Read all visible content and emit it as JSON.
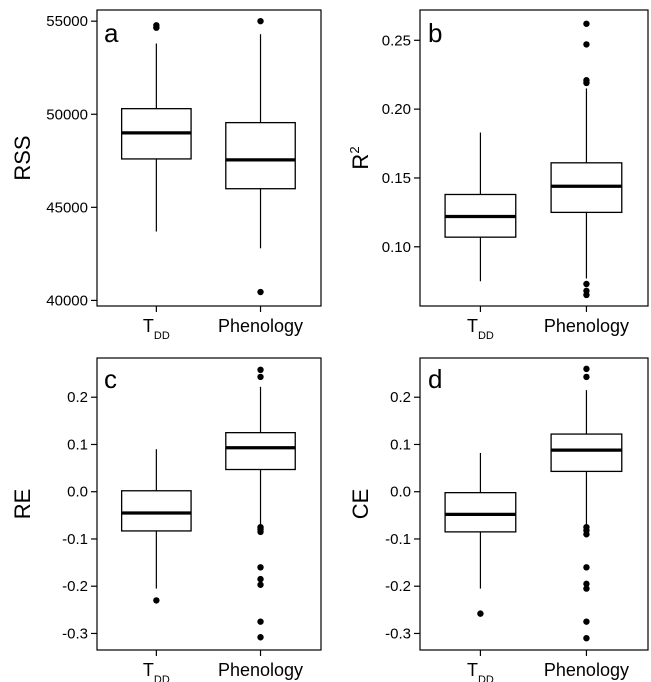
{
  "chart_data": [
    {
      "type": "box",
      "panel_label": "a",
      "ylabel": "RSS",
      "ylabel_sup": "",
      "categories": [
        {
          "main": "T",
          "sub": "DD"
        },
        {
          "main": "Phenology",
          "sub": ""
        }
      ],
      "ylim": [
        39700,
        55600
      ],
      "yticks": [
        40000,
        45000,
        50000,
        55000
      ],
      "yticklabels": [
        "40000",
        "45000",
        "50000",
        "55000"
      ],
      "boxes": [
        {
          "whisker_low": 43700,
          "q1": 47600,
          "median": 49000,
          "q3": 50300,
          "whisker_high": 53800,
          "outliers": [
            54650,
            54780
          ]
        },
        {
          "whisker_low": 42800,
          "q1": 46000,
          "median": 47550,
          "q3": 49550,
          "whisker_high": 54300,
          "outliers": [
            55000,
            40450
          ]
        }
      ]
    },
    {
      "type": "box",
      "panel_label": "b",
      "ylabel": "R",
      "ylabel_sup": "2",
      "categories": [
        {
          "main": "T",
          "sub": "DD"
        },
        {
          "main": "Phenology",
          "sub": ""
        }
      ],
      "ylim": [
        0.057,
        0.272
      ],
      "yticks": [
        0.1,
        0.15,
        0.2,
        0.25
      ],
      "yticklabels": [
        "0.10",
        "0.15",
        "0.20",
        "0.25"
      ],
      "boxes": [
        {
          "whisker_low": 0.075,
          "q1": 0.107,
          "median": 0.122,
          "q3": 0.138,
          "whisker_high": 0.183,
          "outliers": []
        },
        {
          "whisker_low": 0.077,
          "q1": 0.125,
          "median": 0.144,
          "q3": 0.161,
          "whisker_high": 0.215,
          "outliers": [
            0.262,
            0.247,
            0.221,
            0.219,
            0.073,
            0.068,
            0.065
          ]
        }
      ]
    },
    {
      "type": "box",
      "panel_label": "c",
      "ylabel": "RE",
      "ylabel_sup": "",
      "categories": [
        {
          "main": "T",
          "sub": "DD"
        },
        {
          "main": "Phenology",
          "sub": ""
        }
      ],
      "ylim": [
        -0.335,
        0.283
      ],
      "yticks": [
        -0.3,
        -0.2,
        -0.1,
        0.0,
        0.1,
        0.2
      ],
      "yticklabels": [
        "-0.3",
        "-0.2",
        "-0.1",
        "0.0",
        "0.1",
        "0.2"
      ],
      "boxes": [
        {
          "whisker_low": -0.205,
          "q1": -0.083,
          "median": -0.045,
          "q3": 0.002,
          "whisker_high": 0.09,
          "outliers": [
            -0.23
          ]
        },
        {
          "whisker_low": -0.07,
          "q1": 0.047,
          "median": 0.093,
          "q3": 0.125,
          "whisker_high": 0.222,
          "outliers": [
            0.258,
            0.243,
            -0.075,
            -0.08,
            -0.085,
            -0.16,
            -0.185,
            -0.197,
            -0.275,
            -0.308
          ]
        }
      ]
    },
    {
      "type": "box",
      "panel_label": "d",
      "ylabel": "CE",
      "ylabel_sup": "",
      "categories": [
        {
          "main": "T",
          "sub": "DD"
        },
        {
          "main": "Phenology",
          "sub": ""
        }
      ],
      "ylim": [
        -0.335,
        0.283
      ],
      "yticks": [
        -0.3,
        -0.2,
        -0.1,
        0.0,
        0.1,
        0.2
      ],
      "yticklabels": [
        "-0.3",
        "-0.2",
        "-0.1",
        "0.0",
        "0.1",
        "0.2"
      ],
      "boxes": [
        {
          "whisker_low": -0.205,
          "q1": -0.085,
          "median": -0.048,
          "q3": -0.002,
          "whisker_high": 0.082,
          "outliers": [
            -0.258
          ]
        },
        {
          "whisker_low": -0.07,
          "q1": 0.043,
          "median": 0.088,
          "q3": 0.122,
          "whisker_high": 0.215,
          "outliers": [
            0.26,
            0.243,
            -0.075,
            -0.082,
            -0.09,
            -0.16,
            -0.195,
            -0.205,
            -0.275,
            -0.31
          ]
        }
      ]
    }
  ]
}
